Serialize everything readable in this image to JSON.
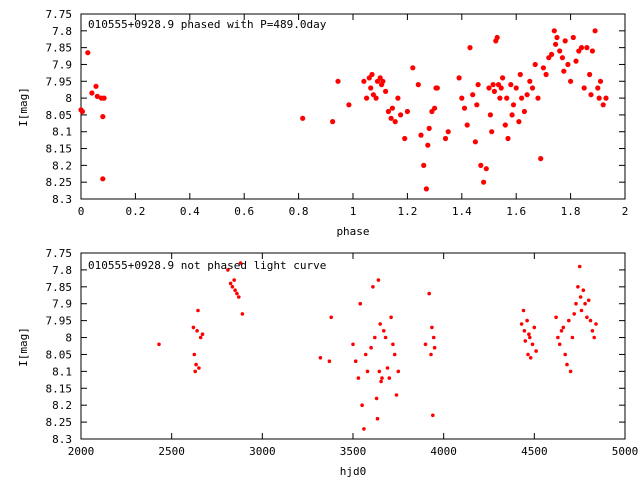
{
  "chart_data": [
    {
      "type": "scatter",
      "title": "010555+0928.9 phased with P=489.0day",
      "xlabel": "phase",
      "ylabel": "I[mag]",
      "xlim": [
        0,
        2
      ],
      "ylim": [
        7.75,
        8.3
      ],
      "y_inverted": true,
      "xticks": [
        "0",
        "0.2",
        "0.4",
        "0.6",
        "0.8",
        "1",
        "1.2",
        "1.4",
        "1.6",
        "1.8",
        "2"
      ],
      "yticks": [
        "7.75",
        "7.8",
        "7.85",
        "7.9",
        "7.95",
        "8",
        "8.05",
        "8.1",
        "8.15",
        "8.2",
        "8.25",
        "8.3"
      ],
      "grid": false,
      "marker_color": "#ff0000",
      "x": [
        0.0,
        0.005,
        0.025,
        0.04,
        0.055,
        0.06,
        0.075,
        0.08,
        0.08,
        0.085,
        0.815,
        0.925,
        0.945,
        0.985,
        1.04,
        1.05,
        1.06,
        1.065,
        1.07,
        1.075,
        1.085,
        1.09,
        1.1,
        1.105,
        1.11,
        1.12,
        1.13,
        1.14,
        1.145,
        1.155,
        1.165,
        1.175,
        1.19,
        1.2,
        1.22,
        1.24,
        1.25,
        1.26,
        1.27,
        1.275,
        1.28,
        1.29,
        1.3,
        1.305,
        1.31,
        1.34,
        1.35,
        1.39,
        1.4,
        1.41,
        1.42,
        1.43,
        1.44,
        1.45,
        1.455,
        1.46,
        1.47,
        1.48,
        1.49,
        1.5,
        1.505,
        1.51,
        1.515,
        1.52,
        1.525,
        1.53,
        1.535,
        1.54,
        1.545,
        1.55,
        1.56,
        1.565,
        1.57,
        1.58,
        1.585,
        1.59,
        1.6,
        1.61,
        1.615,
        1.62,
        1.63,
        1.64,
        1.65,
        1.66,
        1.67,
        1.68,
        1.69,
        1.7,
        1.71,
        1.72,
        1.73,
        1.74,
        1.745,
        1.75,
        1.76,
        1.77,
        1.775,
        1.78,
        1.79,
        1.8,
        1.81,
        1.82,
        1.83,
        1.84,
        1.85,
        1.86,
        1.87,
        1.875,
        1.88,
        1.89,
        1.9,
        1.905,
        1.91,
        1.92,
        1.93
      ],
      "y": [
        8.035,
        8.04,
        7.865,
        7.985,
        7.965,
        7.995,
        8.0,
        8.055,
        8.24,
        8.0,
        8.06,
        8.07,
        7.95,
        8.02,
        7.95,
        8.0,
        7.94,
        7.97,
        7.93,
        7.99,
        8.0,
        7.95,
        7.94,
        7.96,
        7.95,
        7.98,
        8.04,
        8.06,
        8.03,
        8.07,
        8.0,
        8.05,
        8.12,
        8.04,
        7.91,
        7.96,
        8.11,
        8.2,
        8.27,
        8.14,
        8.09,
        8.04,
        8.03,
        7.97,
        7.97,
        8.12,
        8.1,
        7.94,
        8.0,
        8.03,
        8.08,
        7.85,
        7.99,
        8.13,
        8.02,
        7.96,
        8.2,
        8.25,
        8.21,
        7.97,
        8.05,
        8.1,
        7.96,
        7.98,
        7.83,
        7.82,
        7.96,
        8.0,
        7.97,
        7.94,
        8.08,
        8.0,
        8.12,
        7.96,
        8.05,
        8.02,
        7.97,
        8.07,
        7.93,
        8.0,
        8.04,
        7.99,
        7.95,
        7.97,
        7.9,
        8.0,
        8.18,
        7.91,
        7.93,
        7.88,
        7.87,
        7.8,
        7.84,
        7.82,
        7.86,
        7.88,
        7.92,
        7.83,
        7.9,
        7.95,
        7.82,
        7.89,
        7.86,
        7.85,
        7.97,
        7.85,
        7.93,
        7.99,
        7.86,
        7.8,
        7.97,
        8.0,
        7.95,
        8.02,
        8.0
      ]
    },
    {
      "type": "scatter",
      "title": "010555+0928.9 not phased light curve",
      "xlabel": "hjd0",
      "ylabel": "I[mag]",
      "xlim": [
        2000,
        5000
      ],
      "ylim": [
        7.75,
        8.3
      ],
      "y_inverted": true,
      "xticks": [
        "2000",
        "2500",
        "3000",
        "3500",
        "4000",
        "4500",
        "5000"
      ],
      "yticks": [
        "7.75",
        "7.8",
        "7.85",
        "7.9",
        "7.95",
        "8",
        "8.05",
        "8.1",
        "8.15",
        "8.2",
        "8.25",
        "8.3"
      ],
      "grid": false,
      "marker_color": "#ff0000",
      "x": [
        2430,
        2620,
        2625,
        2630,
        2635,
        2640,
        2645,
        2650,
        2660,
        2670,
        2810,
        2825,
        2835,
        2845,
        2850,
        2860,
        2870,
        2880,
        2890,
        3320,
        3370,
        3380,
        3500,
        3515,
        3530,
        3540,
        3550,
        3560,
        3570,
        3580,
        3600,
        3610,
        3620,
        3630,
        3635,
        3640,
        3645,
        3650,
        3655,
        3660,
        3670,
        3680,
        3690,
        3700,
        3710,
        3720,
        3730,
        3740,
        3750,
        3900,
        3920,
        3930,
        3935,
        3940,
        3945,
        3950,
        4430,
        4440,
        4445,
        4450,
        4460,
        4465,
        4470,
        4475,
        4480,
        4490,
        4500,
        4510,
        4620,
        4630,
        4640,
        4650,
        4660,
        4670,
        4680,
        4690,
        4700,
        4710,
        4720,
        4730,
        4740,
        4750,
        4755,
        4760,
        4770,
        4780,
        4790,
        4800,
        4810,
        4820,
        4830,
        4840
      ],
      "y": [
        8.02,
        7.97,
        8.05,
        8.1,
        8.08,
        7.98,
        7.92,
        8.09,
        8.0,
        7.99,
        7.8,
        7.84,
        7.85,
        7.83,
        7.86,
        7.87,
        7.88,
        7.78,
        7.93,
        8.06,
        8.07,
        7.94,
        8.02,
        8.07,
        8.12,
        7.9,
        8.2,
        8.27,
        8.05,
        8.1,
        8.03,
        7.85,
        8.0,
        8.18,
        8.24,
        7.83,
        8.1,
        7.96,
        8.13,
        8.12,
        7.98,
        8.0,
        8.09,
        8.12,
        7.94,
        8.02,
        8.05,
        8.17,
        8.1,
        8.02,
        7.87,
        8.05,
        7.97,
        8.23,
        8.0,
        8.03,
        7.96,
        7.92,
        7.98,
        8.01,
        7.95,
        8.05,
        7.99,
        8.0,
        8.06,
        8.02,
        7.97,
        8.04,
        7.94,
        8.0,
        8.02,
        7.98,
        7.97,
        8.05,
        8.08,
        7.95,
        8.1,
        8.0,
        7.93,
        7.9,
        7.85,
        7.79,
        7.88,
        7.92,
        7.86,
        7.9,
        7.94,
        7.89,
        7.95,
        7.98,
        8.0,
        7.96
      ]
    }
  ]
}
